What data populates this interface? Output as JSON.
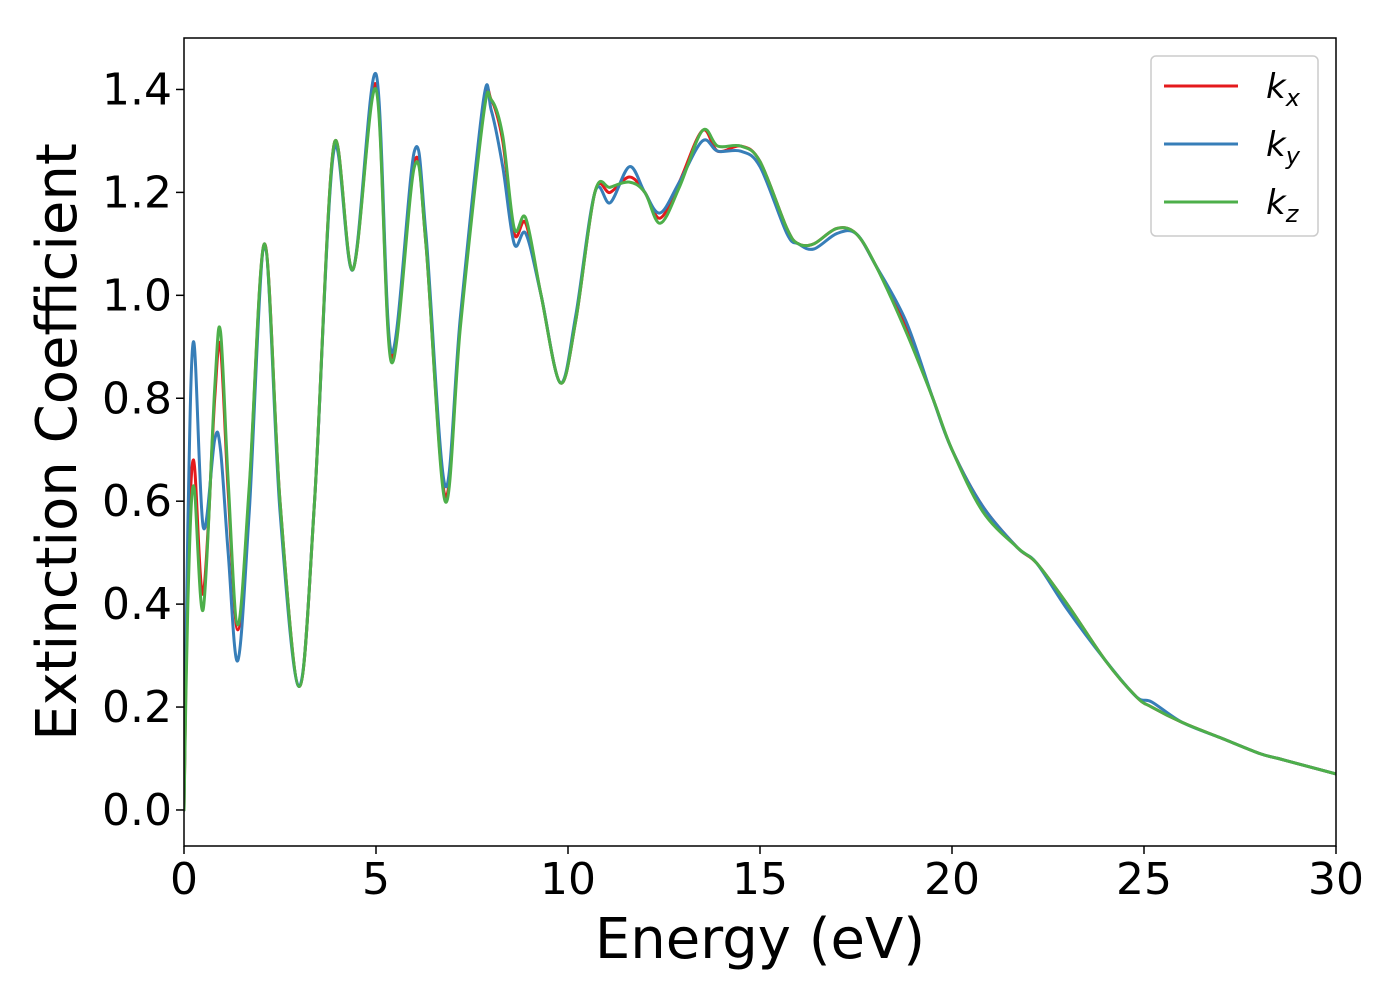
{
  "chart_data": {
    "type": "line",
    "title": "",
    "xlabel": "Energy (eV)",
    "ylabel": "Extinction Coefficient",
    "xlim": [
      0,
      30
    ],
    "ylim": [
      -0.07,
      1.5
    ],
    "xticks": [
      0,
      5,
      10,
      15,
      20,
      25,
      30
    ],
    "xtick_labels": [
      "0",
      "5",
      "10",
      "15",
      "20",
      "25",
      "30"
    ],
    "yticks": [
      0.0,
      0.2,
      0.4,
      0.6,
      0.8,
      1.0,
      1.2,
      1.4
    ],
    "ytick_labels": [
      "0.0",
      "0.2",
      "0.4",
      "0.6",
      "0.8",
      "1.0",
      "1.2",
      "1.4"
    ],
    "grid": false,
    "legend_position": "top-right",
    "x": [
      0,
      0.1,
      0.25,
      0.5,
      0.8,
      0.95,
      1.15,
      1.4,
      1.7,
      2.1,
      2.5,
      3.0,
      3.4,
      3.9,
      4.4,
      5.0,
      5.4,
      6.0,
      6.3,
      6.8,
      7.2,
      7.8,
      8.0,
      8.3,
      8.6,
      8.9,
      9.3,
      9.8,
      10.2,
      10.7,
      11.1,
      11.6,
      12.0,
      12.4,
      12.9,
      13.5,
      13.9,
      14.5,
      15.0,
      15.7,
      16.0,
      16.4,
      17.0,
      17.5,
      18.0,
      18.8,
      19.5,
      20.0,
      20.8,
      21.7,
      22.2,
      23.0,
      24.0,
      24.8,
      25.2,
      26.0,
      27.0,
      28.0,
      28.5,
      29.0,
      30.0
    ],
    "series": [
      {
        "name": "k",
        "subscript": "x",
        "color": "#e41a1c",
        "values": [
          0.0,
          0.45,
          0.68,
          0.42,
          0.8,
          0.9,
          0.62,
          0.35,
          0.62,
          1.1,
          0.6,
          0.24,
          0.6,
          1.29,
          1.05,
          1.41,
          0.88,
          1.26,
          1.1,
          0.61,
          0.95,
          1.36,
          1.38,
          1.3,
          1.12,
          1.14,
          1.0,
          0.83,
          0.95,
          1.2,
          1.2,
          1.23,
          1.2,
          1.15,
          1.22,
          1.32,
          1.28,
          1.29,
          1.26,
          1.13,
          1.1,
          1.1,
          1.13,
          1.12,
          1.06,
          0.94,
          0.8,
          0.7,
          0.59,
          0.51,
          0.48,
          0.4,
          0.29,
          0.22,
          0.2,
          0.17,
          0.14,
          0.11,
          0.1,
          0.09,
          0.07
        ]
      },
      {
        "name": "k",
        "subscript": "y",
        "color": "#377eb8",
        "values": [
          0.0,
          0.55,
          0.91,
          0.55,
          0.72,
          0.7,
          0.5,
          0.29,
          0.58,
          1.09,
          0.58,
          0.24,
          0.6,
          1.28,
          1.05,
          1.43,
          0.89,
          1.28,
          1.12,
          0.63,
          0.96,
          1.38,
          1.36,
          1.25,
          1.1,
          1.12,
          1.0,
          0.83,
          0.96,
          1.2,
          1.18,
          1.25,
          1.2,
          1.16,
          1.22,
          1.3,
          1.28,
          1.28,
          1.25,
          1.12,
          1.1,
          1.09,
          1.12,
          1.12,
          1.06,
          0.95,
          0.8,
          0.7,
          0.59,
          0.51,
          0.48,
          0.39,
          0.29,
          0.22,
          0.21,
          0.17,
          0.14,
          0.11,
          0.1,
          0.09,
          0.07
        ]
      },
      {
        "name": "k",
        "subscript": "z",
        "color": "#4daf4a",
        "values": [
          0.0,
          0.4,
          0.63,
          0.39,
          0.82,
          0.93,
          0.64,
          0.36,
          0.63,
          1.1,
          0.6,
          0.24,
          0.6,
          1.29,
          1.05,
          1.4,
          0.87,
          1.25,
          1.1,
          0.6,
          0.94,
          1.35,
          1.38,
          1.31,
          1.13,
          1.15,
          1.0,
          0.83,
          0.95,
          1.2,
          1.21,
          1.22,
          1.2,
          1.14,
          1.21,
          1.32,
          1.29,
          1.29,
          1.26,
          1.13,
          1.1,
          1.1,
          1.13,
          1.12,
          1.06,
          0.93,
          0.8,
          0.7,
          0.58,
          0.51,
          0.48,
          0.4,
          0.29,
          0.22,
          0.2,
          0.17,
          0.14,
          0.11,
          0.1,
          0.09,
          0.07
        ]
      }
    ]
  }
}
